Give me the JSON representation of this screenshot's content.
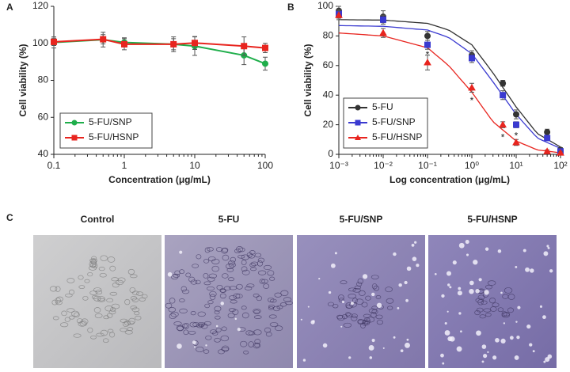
{
  "chart_data": [
    {
      "type": "line",
      "panel": "A",
      "xlabel": "Concentration (μg/mL)",
      "ylabel": "Cell viability (%)",
      "xscale": "log",
      "xlim": [
        0.1,
        100
      ],
      "xticks": [
        0.1,
        1,
        10,
        100
      ],
      "ylim": [
        40,
        120
      ],
      "yticks": [
        40,
        60,
        80,
        100,
        120
      ],
      "legend": "lower-left",
      "series": [
        {
          "name": "5-FU/SNP",
          "color": "#1fae4b",
          "marker": "circle",
          "x": [
            0.1,
            0.5,
            1,
            5,
            10,
            50,
            100
          ],
          "values": [
            100.5,
            102,
            100.5,
            99.5,
            98.5,
            93.5,
            89
          ],
          "errors": [
            3,
            4,
            2.5,
            4,
            5,
            5,
            3.5
          ]
        },
        {
          "name": "5-FU/HSNP",
          "color": "#e8251f",
          "marker": "square",
          "x": [
            0.1,
            0.5,
            1,
            5,
            10,
            50,
            100
          ],
          "values": [
            100.8,
            102.2,
            99.5,
            99.5,
            100.2,
            98.5,
            97.5
          ],
          "errors": [
            2,
            2.5,
            3,
            3,
            3.5,
            5,
            2.5
          ]
        }
      ]
    },
    {
      "type": "scatter",
      "panel": "B",
      "xlabel": "Log concentration (μg/mL)",
      "ylabel": "Cell viability (%)",
      "xscale": "log",
      "xlim": [
        0.001,
        100
      ],
      "xticks": [
        {
          "value": 0.001,
          "label": "10⁻³"
        },
        {
          "value": 0.01,
          "label": "10⁻²"
        },
        {
          "value": 0.1,
          "label": "10⁻¹"
        },
        {
          "value": 1,
          "label": "10⁰"
        },
        {
          "value": 10,
          "label": "10¹"
        },
        {
          "value": 100,
          "label": "10²"
        }
      ],
      "ylim": [
        0,
        100
      ],
      "yticks": [
        0,
        20,
        40,
        60,
        80,
        100
      ],
      "legend": "lower-left",
      "series": [
        {
          "name": "5-FU",
          "color": "#333333",
          "marker": "circle",
          "x": [
            0.001,
            0.01,
            0.1,
            1,
            5,
            10,
            50,
            100
          ],
          "values": [
            97,
            93,
            80,
            67,
            48,
            27,
            15,
            3
          ],
          "errors": [
            3,
            4,
            3,
            3,
            2,
            3,
            2,
            1.5
          ],
          "curve_x": [
            0.001,
            0.01,
            0.1,
            0.3,
            1,
            3,
            10,
            30,
            100
          ],
          "curve_values": [
            91,
            90.7,
            88.5,
            84,
            74,
            55,
            32,
            14,
            5
          ]
        },
        {
          "name": "5-FU/SNP",
          "color": "#3a3ad0",
          "marker": "square",
          "x": [
            0.001,
            0.01,
            0.1,
            1,
            5,
            10,
            50,
            100
          ],
          "values": [
            95,
            91,
            74,
            65,
            40,
            20,
            11,
            2
          ],
          "errors": [
            3,
            3,
            3,
            3,
            3,
            2,
            1.5,
            1
          ]
        },
        {
          "name": "5-FU/HSNP",
          "color": "#e8251f",
          "marker": "triangle",
          "x": [
            0.001,
            0.01,
            0.1,
            1,
            5,
            10,
            50,
            100
          ],
          "values": [
            94,
            82,
            62,
            45,
            20,
            8,
            2,
            1
          ],
          "errors": [
            3,
            3,
            5,
            3,
            2,
            2,
            1,
            1
          ]
        }
      ],
      "curves": [
        {
          "color": "#333333",
          "x": [
            0.001,
            0.01,
            0.1,
            0.3,
            1,
            3,
            10,
            30,
            100
          ],
          "values": [
            91,
            90.7,
            88.5,
            84,
            74,
            55,
            32,
            14,
            5
          ]
        },
        {
          "color": "#3a3ad0",
          "x": [
            0.001,
            0.01,
            0.1,
            0.3,
            1,
            3,
            10,
            30,
            100
          ],
          "values": [
            87,
            86.5,
            84,
            79,
            68,
            49,
            27,
            11,
            4
          ]
        },
        {
          "color": "#e8251f",
          "x": [
            0.001,
            0.01,
            0.1,
            0.3,
            1,
            3,
            10,
            30,
            100
          ],
          "values": [
            82,
            80,
            72,
            60,
            42,
            22,
            9,
            3,
            1
          ]
        }
      ],
      "annotations": [
        {
          "text": "*",
          "x": 0.1,
          "y": 67
        },
        {
          "text": "*",
          "x": 1,
          "y": 36
        },
        {
          "text": "*",
          "x": 5,
          "y": 11
        },
        {
          "text": "*",
          "x": 10,
          "y": 12
        }
      ]
    }
  ],
  "panel_c": {
    "label": "C",
    "images": [
      "Control",
      "5-FU",
      "5-FU/SNP",
      "5-FU/HSNP"
    ]
  }
}
